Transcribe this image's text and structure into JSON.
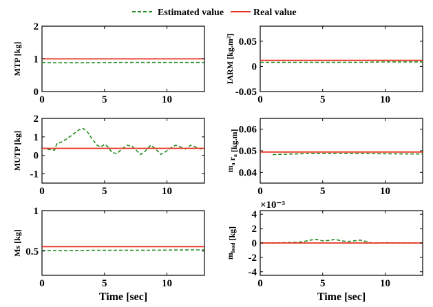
{
  "legend": {
    "estimated": "Estimated value",
    "real": "Real value"
  },
  "colors": {
    "estimated": "#1f8a1f",
    "real": "#e8311f"
  },
  "chart_data": [
    {
      "type": "line",
      "ylabel": "MTP [kg]",
      "xlabel": "",
      "xlim": [
        0,
        13
      ],
      "ylim": [
        0,
        2
      ],
      "xticks": [
        "0",
        "5",
        "10"
      ],
      "yticks": [
        "0",
        "1",
        "2"
      ],
      "series": [
        {
          "name": "Estimated value",
          "x": [
            0,
            1,
            2,
            4,
            6,
            8,
            10,
            12,
            13
          ],
          "y": [
            0.89,
            0.88,
            0.88,
            0.88,
            0.89,
            0.89,
            0.89,
            0.89,
            0.89
          ]
        },
        {
          "name": "Real value",
          "x": [
            0,
            13
          ],
          "y": [
            1.0,
            1.0
          ]
        }
      ]
    },
    {
      "type": "line",
      "ylabel": "IARM [kg.m²]",
      "xlabel": "",
      "xlim": [
        0,
        13
      ],
      "ylim": [
        -0.05,
        0.08
      ],
      "xticks": [
        "0",
        "5",
        "10"
      ],
      "yticks": [
        "-0.05",
        "0",
        "0.05"
      ],
      "series": [
        {
          "name": "Estimated value",
          "x": [
            0,
            2,
            4,
            6,
            8,
            10,
            12,
            13
          ],
          "y": [
            0.008,
            0.008,
            0.008,
            0.008,
            0.008,
            0.009,
            0.009,
            0.009
          ]
        },
        {
          "name": "Real value",
          "x": [
            0,
            13
          ],
          "y": [
            0.012,
            0.012
          ]
        }
      ]
    },
    {
      "type": "line",
      "ylabel": "MUTP [kg]",
      "xlabel": "",
      "xlim": [
        0,
        13
      ],
      "ylim": [
        -1.5,
        2
      ],
      "xticks": [
        "0",
        "5",
        "10"
      ],
      "yticks": [
        "-1",
        "0",
        "1",
        "2"
      ],
      "series": [
        {
          "name": "Estimated value",
          "x": [
            0,
            0.5,
            0.8,
            1.0,
            1.2,
            1.5,
            2.0,
            2.5,
            3.0,
            3.3,
            3.6,
            4.0,
            4.4,
            4.7,
            5.0,
            5.3,
            5.6,
            6.0,
            6.4,
            6.8,
            7.2,
            7.5,
            7.9,
            8.3,
            8.7,
            9.1,
            9.5,
            9.9,
            10.3,
            10.7,
            11.1,
            11.5,
            11.9,
            12.3,
            12.7,
            13.0
          ],
          "y": [
            0.4,
            0.33,
            0.3,
            0.28,
            0.65,
            0.7,
            0.9,
            1.15,
            1.4,
            1.45,
            1.3,
            0.9,
            0.55,
            0.45,
            0.6,
            0.45,
            0.15,
            0.1,
            0.35,
            0.55,
            0.5,
            0.3,
            0.05,
            0.25,
            0.55,
            0.35,
            0.05,
            0.2,
            0.4,
            0.55,
            0.45,
            0.35,
            0.55,
            0.45,
            0.35,
            0.4
          ]
        },
        {
          "name": "Real value",
          "x": [
            0,
            13
          ],
          "y": [
            0.38,
            0.38
          ]
        }
      ]
    },
    {
      "type": "line",
      "ylabel": "m_a r_a [kg.m]",
      "xlabel": "",
      "xlim": [
        0,
        13
      ],
      "ylim": [
        0.035,
        0.065
      ],
      "xticks": [
        "0",
        "5",
        "10"
      ],
      "yticks": [
        "0.04",
        "0.05",
        "0.06"
      ],
      "series": [
        {
          "name": "Estimated value",
          "x": [
            1.0,
            2.0,
            4.0,
            6.0,
            8.0,
            10.0,
            12.0,
            13.0
          ],
          "y": [
            0.0482,
            0.0484,
            0.0487,
            0.0488,
            0.0487,
            0.0486,
            0.0485,
            0.0485
          ]
        },
        {
          "name": "Real value",
          "x": [
            0,
            13
          ],
          "y": [
            0.0494,
            0.0494
          ]
        }
      ]
    },
    {
      "type": "line",
      "ylabel": "Ms [kg]",
      "xlabel": "Time [sec]",
      "xlim": [
        0,
        13
      ],
      "ylim": [
        0.2,
        1.0
      ],
      "xticks": [
        "0",
        "5",
        "10"
      ],
      "yticks": [
        "0.5",
        "1"
      ],
      "series": [
        {
          "name": "Estimated value",
          "x": [
            0,
            1,
            2,
            4,
            6,
            8,
            10,
            12,
            13
          ],
          "y": [
            0.505,
            0.505,
            0.505,
            0.51,
            0.51,
            0.51,
            0.512,
            0.515,
            0.515
          ]
        },
        {
          "name": "Real value",
          "x": [
            0,
            13
          ],
          "y": [
            0.555,
            0.555
          ]
        }
      ]
    },
    {
      "type": "line",
      "ylabel": "m_load [kg]",
      "xlabel": "Time [sec]",
      "xlim": [
        0,
        13
      ],
      "ylim": [
        -4.5,
        4.5
      ],
      "xticks": [
        "0",
        "5",
        "10"
      ],
      "yticks": [
        "-4",
        "-2",
        "0",
        "2",
        "4"
      ],
      "yexponent": "×10⁻³",
      "series": [
        {
          "name": "Estimated value",
          "x": [
            0,
            1,
            2,
            3,
            3.5,
            4,
            4.5,
            5,
            5.5,
            6,
            6.5,
            7,
            7.5,
            8,
            8.5,
            9,
            9.5,
            10,
            11,
            12,
            13
          ],
          "y": [
            0,
            0,
            0.05,
            0.1,
            0.2,
            0.4,
            0.5,
            0.3,
            0.35,
            0.5,
            0.3,
            0.2,
            0.3,
            0.4,
            0.2,
            -0.05,
            0,
            0.05,
            0,
            0,
            0
          ]
        },
        {
          "name": "Real value",
          "x": [
            0,
            13
          ],
          "y": [
            0,
            0
          ]
        }
      ]
    }
  ]
}
